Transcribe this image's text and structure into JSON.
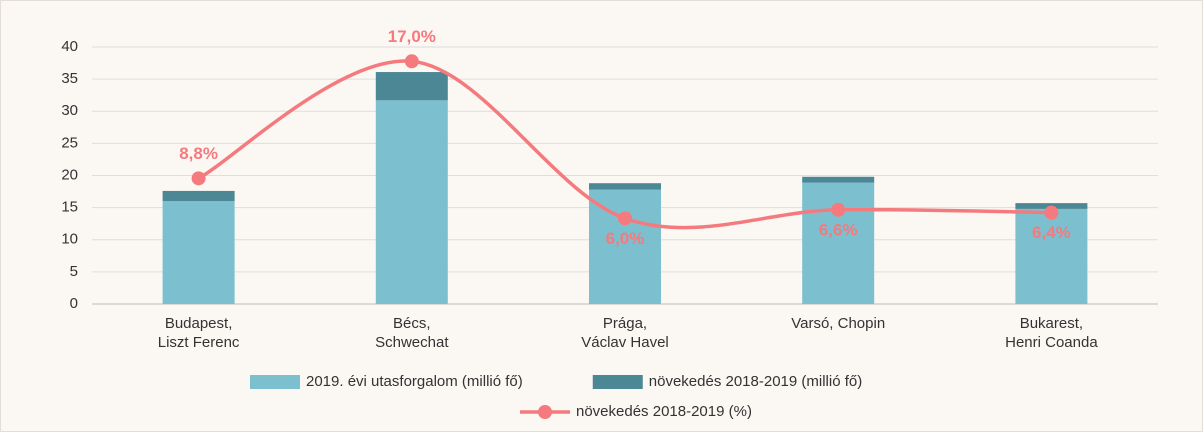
{
  "chart_data": {
    "type": "bar",
    "categories": [
      "Budapest,\nLiszt Ferenc",
      "Bécs,\nSchwechat",
      "Prága,\nVáclav Havel",
      "Varsó, Chopin",
      "Bukarest,\nHenri Coanda"
    ],
    "series": [
      {
        "name": "2019. évi utasforgalom (millió fő)",
        "color": "#7cc0cf",
        "values": [
          16.0,
          31.7,
          17.8,
          18.9,
          14.8
        ]
      },
      {
        "name": "növekedés 2018-2019 (millió fő)",
        "color": "#4b8794",
        "values": [
          1.6,
          4.4,
          1.0,
          0.9,
          0.9
        ]
      },
      {
        "name": "növekedés 2018-2019 (%)",
        "color": "#f47a7e",
        "type": "line",
        "axis": "y2",
        "values": [
          8.8,
          17.0,
          6.0,
          6.6,
          6.4
        ],
        "value_labels": [
          "8,8%",
          "17,0%",
          "6,0%",
          "6,6%",
          "6,4%"
        ]
      }
    ],
    "stacked": true,
    "ylim": [
      0,
      40
    ],
    "yticks": [
      0,
      5,
      10,
      15,
      20,
      25,
      30,
      35,
      40
    ],
    "y2lim": [
      0,
      18
    ],
    "grid": true
  }
}
